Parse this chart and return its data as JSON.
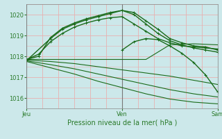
{
  "title": "Pression niveau de la mer( hPa )",
  "background_color": "#cce8ea",
  "grid_color_v": "#e8b0b0",
  "grid_color_h": "#e8b0b0",
  "line_color": "#1a6b1a",
  "tick_label_color": "#2a7a2a",
  "ylim": [
    1015.5,
    1020.5
  ],
  "xlim": [
    0,
    48
  ],
  "yticks": [
    1016,
    1017,
    1018,
    1019,
    1020
  ],
  "xtick_positions": [
    0,
    24,
    48
  ],
  "xtick_labels": [
    "Jeu",
    "Ven",
    "Sam"
  ],
  "n_vcells": 12,
  "n_hcells": 5,
  "series": [
    {
      "x": [
        0,
        6,
        9,
        12,
        15,
        18,
        21,
        24,
        27,
        30,
        33,
        36,
        39,
        42,
        45,
        48
      ],
      "y": [
        1017.8,
        1018.85,
        1019.3,
        1019.55,
        1019.75,
        1019.9,
        1020.05,
        1020.2,
        1020.1,
        1019.7,
        1019.3,
        1018.85,
        1018.65,
        1018.5,
        1018.45,
        1018.3
      ],
      "marker": "+",
      "lw": 1.0
    },
    {
      "x": [
        0,
        3,
        6,
        9,
        12,
        15,
        18,
        21,
        24,
        27,
        30,
        33,
        36,
        39,
        42,
        45,
        48
      ],
      "y": [
        1017.85,
        1018.0,
        1018.9,
        1019.35,
        1019.6,
        1019.8,
        1019.95,
        1020.1,
        1020.2,
        1020.0,
        1019.55,
        1019.1,
        1018.75,
        1018.55,
        1018.4,
        1018.3,
        1018.2
      ],
      "marker": "+",
      "lw": 1.0
    },
    {
      "x": [
        0,
        3,
        6,
        9,
        12,
        15,
        18,
        21,
        24,
        27,
        30,
        33,
        36,
        39,
        42,
        45,
        48
      ],
      "y": [
        1017.85,
        1018.1,
        1018.7,
        1019.1,
        1019.4,
        1019.6,
        1019.75,
        1019.85,
        1019.9,
        1019.55,
        1019.2,
        1018.85,
        1018.65,
        1018.5,
        1018.45,
        1018.4,
        1018.35
      ],
      "marker": "+",
      "lw": 1.0
    },
    {
      "x": [
        0,
        6,
        12,
        18,
        24,
        30,
        36,
        42,
        48
      ],
      "y": [
        1017.85,
        1017.85,
        1017.85,
        1017.85,
        1017.85,
        1017.85,
        1018.55,
        1018.6,
        1018.55
      ],
      "marker": null,
      "lw": 0.8
    },
    {
      "x": [
        0,
        6,
        12,
        18,
        24,
        30,
        36,
        42,
        48
      ],
      "y": [
        1017.82,
        1017.75,
        1017.65,
        1017.5,
        1017.35,
        1017.2,
        1017.05,
        1016.85,
        1016.65
      ],
      "marker": null,
      "lw": 0.8
    },
    {
      "x": [
        0,
        6,
        12,
        18,
        24,
        30,
        36,
        42,
        48
      ],
      "y": [
        1017.78,
        1017.6,
        1017.4,
        1017.15,
        1016.9,
        1016.65,
        1016.4,
        1016.2,
        1016.05
      ],
      "marker": null,
      "lw": 0.8
    },
    {
      "x": [
        0,
        6,
        12,
        18,
        24,
        30,
        36,
        42,
        48
      ],
      "y": [
        1017.75,
        1017.45,
        1017.15,
        1016.8,
        1016.5,
        1016.2,
        1015.95,
        1015.8,
        1015.72
      ],
      "marker": null,
      "lw": 0.8
    },
    {
      "x": [
        24,
        27,
        30,
        33,
        36,
        39,
        42,
        45,
        48
      ],
      "y": [
        1018.3,
        1018.7,
        1018.85,
        1018.8,
        1018.5,
        1018.15,
        1017.7,
        1017.1,
        1016.3
      ],
      "marker": "+",
      "lw": 1.0
    }
  ]
}
